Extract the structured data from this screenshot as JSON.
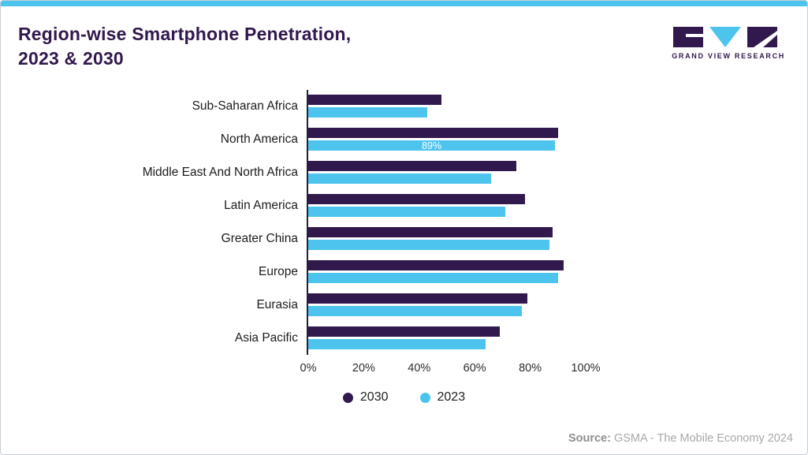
{
  "header": {
    "title_line1": "Region-wise Smartphone Penetration,",
    "title_line2": "2023 & 2030",
    "brand": "GRAND VIEW RESEARCH"
  },
  "colors": {
    "accent_cyan": "#4cc4ee",
    "brand_purple": "#31184d"
  },
  "chart_data": {
    "type": "bar",
    "orientation": "horizontal",
    "title": "Region-wise Smartphone Penetration, 2023 & 2030",
    "categories": [
      "Sub-Saharan Africa",
      "North America",
      "Middle East And North Africa",
      "Latin America",
      "Greater China",
      "Europe",
      "Eurasia",
      "Asia Pacific"
    ],
    "series": [
      {
        "name": "2030",
        "color": "#31184d",
        "values": [
          48,
          90,
          75,
          78,
          88,
          92,
          79,
          69
        ]
      },
      {
        "name": "2023",
        "color": "#4cc4ee",
        "values": [
          43,
          89,
          66,
          71,
          87,
          90,
          77,
          64
        ]
      }
    ],
    "xlabel": "",
    "ylabel": "",
    "xmax": 100,
    "x_ticks": [
      "0%",
      "20%",
      "40%",
      "60%",
      "80%",
      "100%"
    ],
    "grid": false,
    "legend_position": "bottom",
    "annotations": [
      {
        "category": "North America",
        "series": "2023",
        "text": "89%"
      }
    ]
  },
  "footer": {
    "source_label": "Source:",
    "source_text": " GSMA - The Mobile Economy 2024"
  }
}
